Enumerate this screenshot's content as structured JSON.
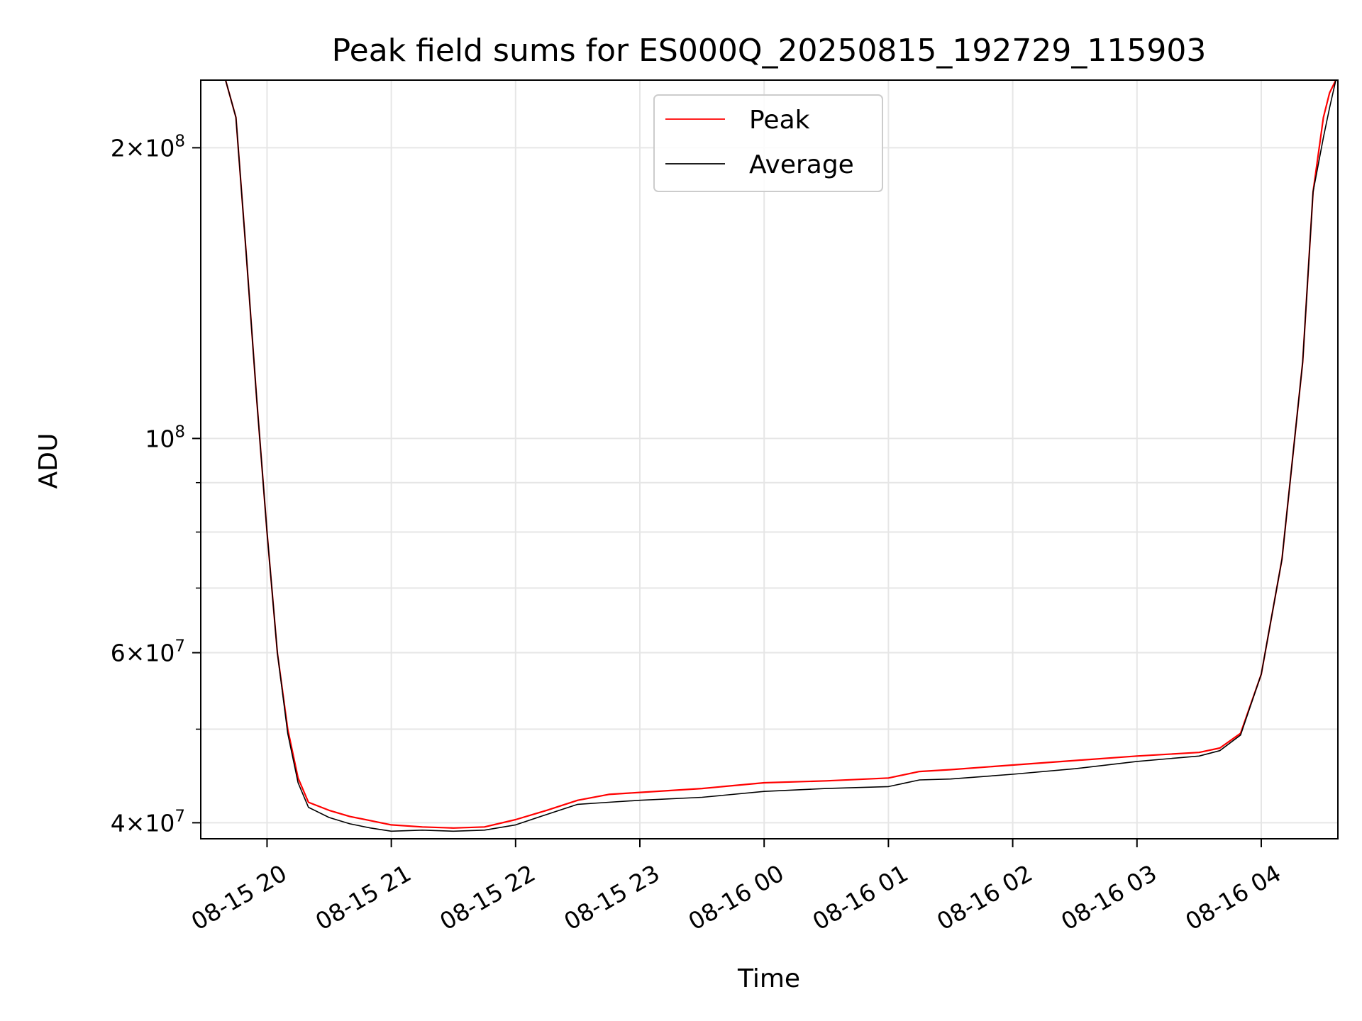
{
  "chart_data": {
    "type": "line",
    "title": "Peak field sums for ES000Q_20250815_192729_115903",
    "xlabel": "Time",
    "ylabel": "ADU",
    "xlim": [
      "2025-08-15 19:28",
      "2025-08-16 04:37"
    ],
    "ylim": [
      38500000,
      235000000
    ],
    "yscale": "log",
    "grid": true,
    "legend_position": "upper-center",
    "colors": {
      "Peak": "#ff0000",
      "Average": "#000000"
    },
    "x_ticks": [
      {
        "value": "2025-08-15 20:00",
        "label": "08-15 20"
      },
      {
        "value": "2025-08-15 21:00",
        "label": "08-15 21"
      },
      {
        "value": "2025-08-15 22:00",
        "label": "08-15 22"
      },
      {
        "value": "2025-08-15 23:00",
        "label": "08-15 23"
      },
      {
        "value": "2025-08-16 00:00",
        "label": "08-16 00"
      },
      {
        "value": "2025-08-16 01:00",
        "label": "08-16 01"
      },
      {
        "value": "2025-08-16 02:00",
        "label": "08-16 02"
      },
      {
        "value": "2025-08-16 03:00",
        "label": "08-16 03"
      },
      {
        "value": "2025-08-16 04:00",
        "label": "08-16 04"
      }
    ],
    "y_ticks": [
      {
        "value": 40000000,
        "base": "4",
        "exp": "7"
      },
      {
        "value": 60000000,
        "base": "6",
        "exp": "7"
      },
      {
        "value": 100000000,
        "base": "",
        "exp": "8"
      },
      {
        "value": 200000000,
        "base": "2",
        "exp": "8"
      }
    ],
    "y_minor_ticks": [
      50000000,
      70000000,
      80000000,
      90000000
    ],
    "series": [
      {
        "name": "Peak",
        "x": [
          "2025-08-15 19:40",
          "2025-08-15 19:45",
          "2025-08-15 19:50",
          "2025-08-15 19:55",
          "2025-08-15 20:00",
          "2025-08-15 20:05",
          "2025-08-15 20:10",
          "2025-08-15 20:15",
          "2025-08-15 20:20",
          "2025-08-15 20:30",
          "2025-08-15 20:40",
          "2025-08-15 20:50",
          "2025-08-15 21:00",
          "2025-08-15 21:15",
          "2025-08-15 21:30",
          "2025-08-15 21:45",
          "2025-08-15 22:00",
          "2025-08-15 22:15",
          "2025-08-15 22:30",
          "2025-08-15 22:45",
          "2025-08-15 23:00",
          "2025-08-15 23:30",
          "2025-08-16 00:00",
          "2025-08-16 00:30",
          "2025-08-16 01:00",
          "2025-08-16 01:15",
          "2025-08-16 01:30",
          "2025-08-16 02:00",
          "2025-08-16 02:30",
          "2025-08-16 03:00",
          "2025-08-16 03:30",
          "2025-08-16 03:40",
          "2025-08-16 03:50",
          "2025-08-16 04:00",
          "2025-08-16 04:10",
          "2025-08-16 04:20",
          "2025-08-16 04:25",
          "2025-08-16 04:30",
          "2025-08-16 04:33",
          "2025-08-16 04:36"
        ],
        "values": [
          235000000,
          215000000,
          155000000,
          110000000,
          80000000,
          60000000,
          50000000,
          44500000,
          42000000,
          41200000,
          40600000,
          40200000,
          39800000,
          39600000,
          39500000,
          39600000,
          40300000,
          41200000,
          42200000,
          42800000,
          43000000,
          43400000,
          44000000,
          44200000,
          44500000,
          45200000,
          45400000,
          45900000,
          46400000,
          46900000,
          47300000,
          47800000,
          49500000,
          57000000,
          75000000,
          120000000,
          180000000,
          215000000,
          228000000,
          235000000
        ]
      },
      {
        "name": "Average",
        "x": [
          "2025-08-15 19:40",
          "2025-08-15 19:45",
          "2025-08-15 19:50",
          "2025-08-15 19:55",
          "2025-08-15 20:00",
          "2025-08-15 20:05",
          "2025-08-15 20:10",
          "2025-08-15 20:15",
          "2025-08-15 20:20",
          "2025-08-15 20:30",
          "2025-08-15 20:40",
          "2025-08-15 20:50",
          "2025-08-15 21:00",
          "2025-08-15 21:15",
          "2025-08-15 21:30",
          "2025-08-15 21:45",
          "2025-08-15 22:00",
          "2025-08-15 22:15",
          "2025-08-15 22:30",
          "2025-08-15 22:45",
          "2025-08-15 23:00",
          "2025-08-15 23:30",
          "2025-08-16 00:00",
          "2025-08-16 00:30",
          "2025-08-16 01:00",
          "2025-08-16 01:15",
          "2025-08-16 01:30",
          "2025-08-16 02:00",
          "2025-08-16 02:30",
          "2025-08-16 03:00",
          "2025-08-16 03:30",
          "2025-08-16 03:40",
          "2025-08-16 03:50",
          "2025-08-16 04:00",
          "2025-08-16 04:10",
          "2025-08-16 04:20",
          "2025-08-16 04:25",
          "2025-08-16 04:30",
          "2025-08-16 04:33",
          "2025-08-16 04:36"
        ],
        "values": [
          235000000,
          215000000,
          155000000,
          110000000,
          80000000,
          60000000,
          49500000,
          44000000,
          41500000,
          40500000,
          39900000,
          39500000,
          39200000,
          39300000,
          39200000,
          39300000,
          39800000,
          40800000,
          41800000,
          42000000,
          42200000,
          42500000,
          43100000,
          43400000,
          43600000,
          44300000,
          44400000,
          44900000,
          45500000,
          46300000,
          46900000,
          47500000,
          49300000,
          57000000,
          75000000,
          120000000,
          180000000,
          205000000,
          220000000,
          235000000
        ]
      }
    ]
  }
}
